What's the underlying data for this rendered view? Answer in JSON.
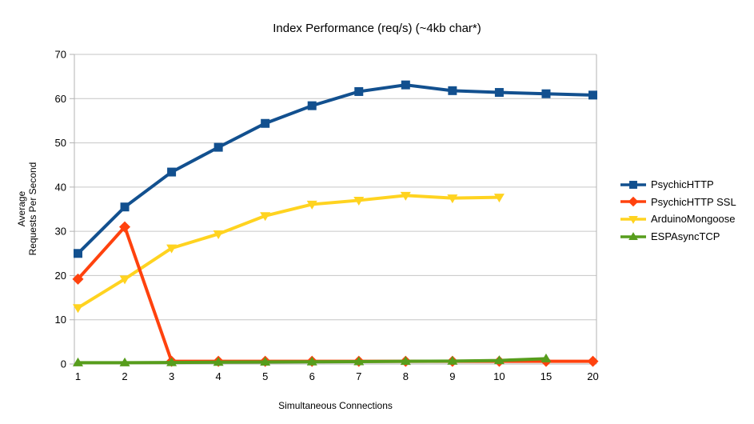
{
  "chart_data": {
    "type": "line",
    "title": "Index Performance (req/s) (~4kb char*)",
    "xlabel": "Simultaneous Connections",
    "ylabel": "Average\nRequests Per Second",
    "ylim": [
      0,
      70
    ],
    "y_ticks": [
      0,
      10,
      20,
      30,
      40,
      50,
      60,
      70
    ],
    "categories": [
      "1",
      "2",
      "3",
      "4",
      "5",
      "6",
      "7",
      "8",
      "9",
      "10",
      "15",
      "20"
    ],
    "grid": "horizontal",
    "legend_position": "right",
    "series": [
      {
        "name": "PsychicHTTP",
        "color": "#12508F",
        "marker": "square",
        "values": [
          25.0,
          35.5,
          43.4,
          49.0,
          54.4,
          58.4,
          61.6,
          63.1,
          61.8,
          61.4,
          61.1,
          60.8
        ]
      },
      {
        "name": "PsychicHTTP SSL",
        "color": "#FF420E",
        "marker": "diamond",
        "values": [
          19.2,
          31.0,
          0.6,
          0.6,
          0.6,
          0.6,
          0.6,
          0.6,
          0.6,
          0.6,
          0.6,
          0.6
        ]
      },
      {
        "name": "ArduinoMongoose",
        "color": "#FFD320",
        "marker": "triangle-down",
        "values": [
          12.7,
          19.2,
          26.2,
          29.4,
          33.5,
          36.1,
          37.0,
          38.1,
          37.5,
          37.7
        ]
      },
      {
        "name": "ESPAsyncTCP",
        "color": "#579D1C",
        "marker": "triangle-up",
        "values": [
          0.3,
          0.3,
          0.35,
          0.4,
          0.45,
          0.5,
          0.55,
          0.6,
          0.65,
          0.8,
          1.2
        ]
      }
    ],
    "style": {
      "grid_color": "#C6C6C6",
      "axis_color": "#B3B3B3",
      "text_color": "#000000",
      "background": "#FFFFFF"
    }
  }
}
